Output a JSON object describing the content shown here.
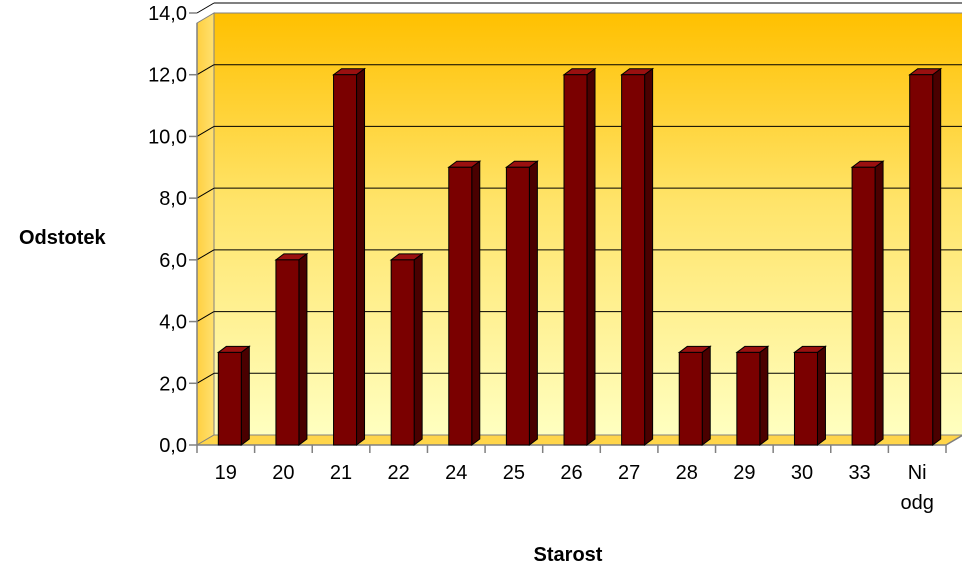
{
  "chart_data": {
    "type": "bar",
    "categories": [
      "19",
      "20",
      "21",
      "22",
      "24",
      "25",
      "26",
      "27",
      "28",
      "29",
      "30",
      "33",
      "Ni odg"
    ],
    "values": [
      3.0,
      6.0,
      12.0,
      6.0,
      9.0,
      9.0,
      12.0,
      12.0,
      3.0,
      3.0,
      3.0,
      9.0,
      12.0
    ],
    "yticks": [
      "0,0",
      "2,0",
      "4,0",
      "6,0",
      "8,0",
      "10,0",
      "12,0",
      "14,0"
    ],
    "xlabel": "Starost",
    "ylabel": "Odstotek",
    "ylim": [
      0,
      14
    ],
    "grid": true,
    "legend": "none",
    "colors": {
      "bar_front": "#7a0000",
      "bar_side": "#4a0000",
      "bar_top": "#9a1010",
      "bg_top": "#ffc000",
      "bg_bottom": "#ffffc0"
    }
  }
}
